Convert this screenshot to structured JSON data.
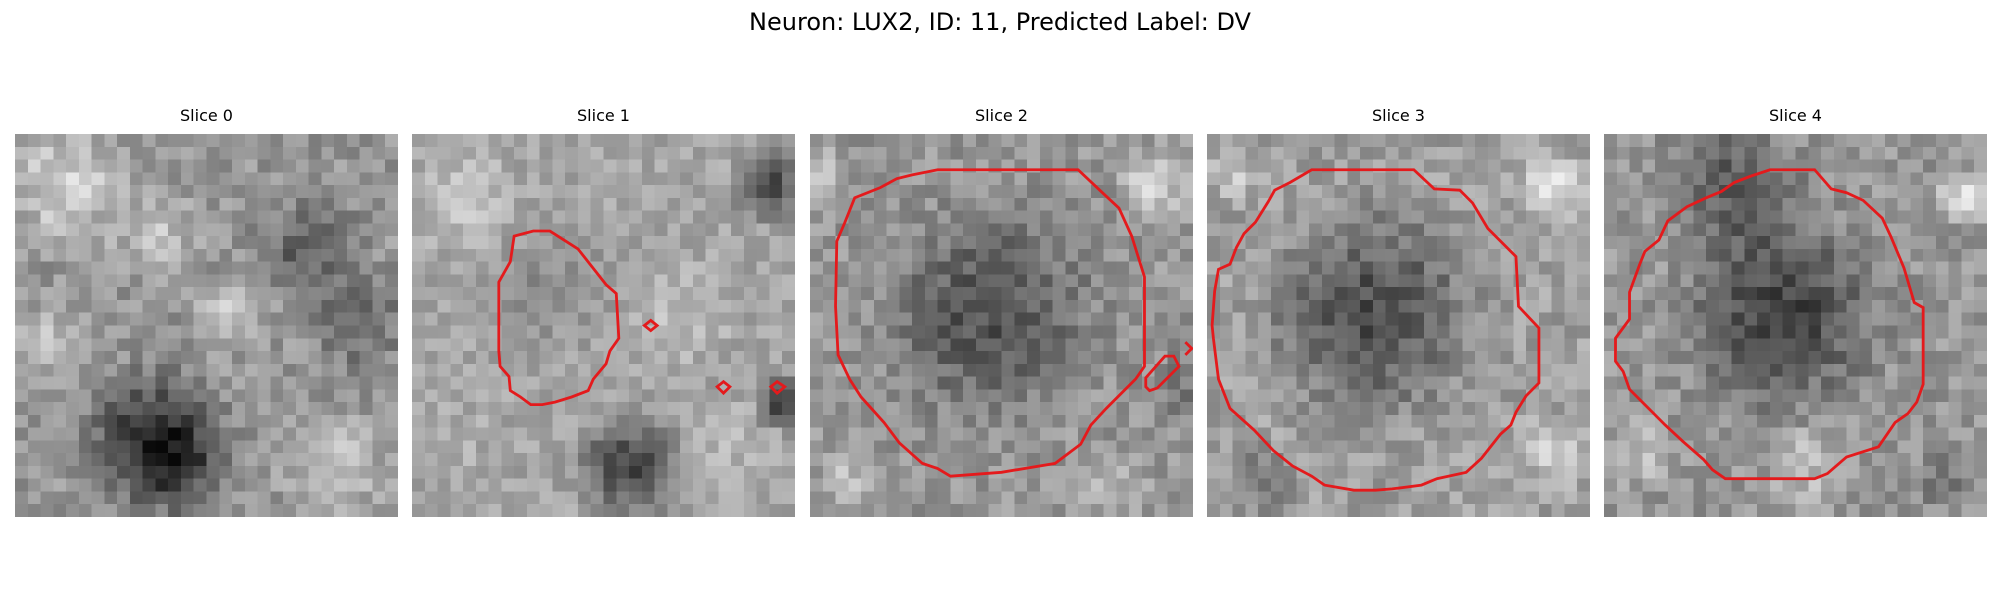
{
  "figure": {
    "title": "Neuron: LUX2, ID: 11, Predicted Label: DV"
  },
  "panels": [
    {
      "title": "Slice 0",
      "has_contour": false
    },
    {
      "title": "Slice 1",
      "has_contour": true
    },
    {
      "title": "Slice 2",
      "has_contour": true
    },
    {
      "title": "Slice 3",
      "has_contour": true
    },
    {
      "title": "Slice 4",
      "has_contour": true
    }
  ],
  "image": {
    "colormap": "grayscale",
    "grid": "30x30 pixels per slice"
  },
  "colors": {
    "background": "#ffffff",
    "contour": "#e41a1c"
  }
}
